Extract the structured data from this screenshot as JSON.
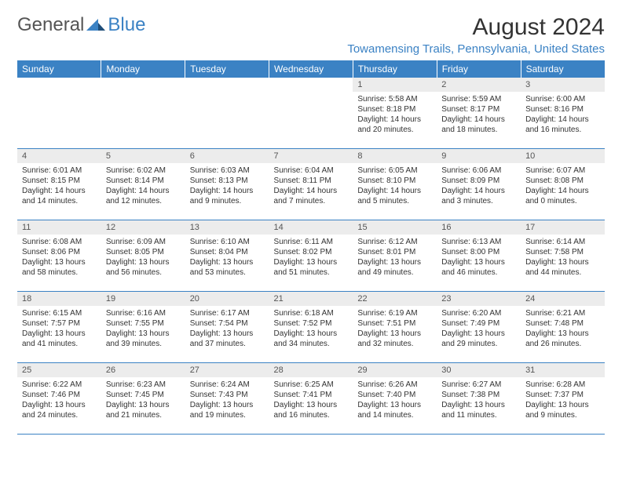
{
  "brand": {
    "part1": "General",
    "part2": "Blue"
  },
  "title": "August 2024",
  "subtitle": "Towamensing Trails, Pennsylvania, United States",
  "colors": {
    "accent": "#3b82c4",
    "header_text": "#ffffff",
    "daynum_bg": "#ececec",
    "text": "#333333",
    "background": "#ffffff"
  },
  "day_headers": [
    "Sunday",
    "Monday",
    "Tuesday",
    "Wednesday",
    "Thursday",
    "Friday",
    "Saturday"
  ],
  "weeks": [
    [
      {
        "day": "",
        "lines": []
      },
      {
        "day": "",
        "lines": []
      },
      {
        "day": "",
        "lines": []
      },
      {
        "day": "",
        "lines": []
      },
      {
        "day": "1",
        "lines": [
          "Sunrise: 5:58 AM",
          "Sunset: 8:18 PM",
          "Daylight: 14 hours and 20 minutes."
        ]
      },
      {
        "day": "2",
        "lines": [
          "Sunrise: 5:59 AM",
          "Sunset: 8:17 PM",
          "Daylight: 14 hours and 18 minutes."
        ]
      },
      {
        "day": "3",
        "lines": [
          "Sunrise: 6:00 AM",
          "Sunset: 8:16 PM",
          "Daylight: 14 hours and 16 minutes."
        ]
      }
    ],
    [
      {
        "day": "4",
        "lines": [
          "Sunrise: 6:01 AM",
          "Sunset: 8:15 PM",
          "Daylight: 14 hours and 14 minutes."
        ]
      },
      {
        "day": "5",
        "lines": [
          "Sunrise: 6:02 AM",
          "Sunset: 8:14 PM",
          "Daylight: 14 hours and 12 minutes."
        ]
      },
      {
        "day": "6",
        "lines": [
          "Sunrise: 6:03 AM",
          "Sunset: 8:13 PM",
          "Daylight: 14 hours and 9 minutes."
        ]
      },
      {
        "day": "7",
        "lines": [
          "Sunrise: 6:04 AM",
          "Sunset: 8:11 PM",
          "Daylight: 14 hours and 7 minutes."
        ]
      },
      {
        "day": "8",
        "lines": [
          "Sunrise: 6:05 AM",
          "Sunset: 8:10 PM",
          "Daylight: 14 hours and 5 minutes."
        ]
      },
      {
        "day": "9",
        "lines": [
          "Sunrise: 6:06 AM",
          "Sunset: 8:09 PM",
          "Daylight: 14 hours and 3 minutes."
        ]
      },
      {
        "day": "10",
        "lines": [
          "Sunrise: 6:07 AM",
          "Sunset: 8:08 PM",
          "Daylight: 14 hours and 0 minutes."
        ]
      }
    ],
    [
      {
        "day": "11",
        "lines": [
          "Sunrise: 6:08 AM",
          "Sunset: 8:06 PM",
          "Daylight: 13 hours and 58 minutes."
        ]
      },
      {
        "day": "12",
        "lines": [
          "Sunrise: 6:09 AM",
          "Sunset: 8:05 PM",
          "Daylight: 13 hours and 56 minutes."
        ]
      },
      {
        "day": "13",
        "lines": [
          "Sunrise: 6:10 AM",
          "Sunset: 8:04 PM",
          "Daylight: 13 hours and 53 minutes."
        ]
      },
      {
        "day": "14",
        "lines": [
          "Sunrise: 6:11 AM",
          "Sunset: 8:02 PM",
          "Daylight: 13 hours and 51 minutes."
        ]
      },
      {
        "day": "15",
        "lines": [
          "Sunrise: 6:12 AM",
          "Sunset: 8:01 PM",
          "Daylight: 13 hours and 49 minutes."
        ]
      },
      {
        "day": "16",
        "lines": [
          "Sunrise: 6:13 AM",
          "Sunset: 8:00 PM",
          "Daylight: 13 hours and 46 minutes."
        ]
      },
      {
        "day": "17",
        "lines": [
          "Sunrise: 6:14 AM",
          "Sunset: 7:58 PM",
          "Daylight: 13 hours and 44 minutes."
        ]
      }
    ],
    [
      {
        "day": "18",
        "lines": [
          "Sunrise: 6:15 AM",
          "Sunset: 7:57 PM",
          "Daylight: 13 hours and 41 minutes."
        ]
      },
      {
        "day": "19",
        "lines": [
          "Sunrise: 6:16 AM",
          "Sunset: 7:55 PM",
          "Daylight: 13 hours and 39 minutes."
        ]
      },
      {
        "day": "20",
        "lines": [
          "Sunrise: 6:17 AM",
          "Sunset: 7:54 PM",
          "Daylight: 13 hours and 37 minutes."
        ]
      },
      {
        "day": "21",
        "lines": [
          "Sunrise: 6:18 AM",
          "Sunset: 7:52 PM",
          "Daylight: 13 hours and 34 minutes."
        ]
      },
      {
        "day": "22",
        "lines": [
          "Sunrise: 6:19 AM",
          "Sunset: 7:51 PM",
          "Daylight: 13 hours and 32 minutes."
        ]
      },
      {
        "day": "23",
        "lines": [
          "Sunrise: 6:20 AM",
          "Sunset: 7:49 PM",
          "Daylight: 13 hours and 29 minutes."
        ]
      },
      {
        "day": "24",
        "lines": [
          "Sunrise: 6:21 AM",
          "Sunset: 7:48 PM",
          "Daylight: 13 hours and 26 minutes."
        ]
      }
    ],
    [
      {
        "day": "25",
        "lines": [
          "Sunrise: 6:22 AM",
          "Sunset: 7:46 PM",
          "Daylight: 13 hours and 24 minutes."
        ]
      },
      {
        "day": "26",
        "lines": [
          "Sunrise: 6:23 AM",
          "Sunset: 7:45 PM",
          "Daylight: 13 hours and 21 minutes."
        ]
      },
      {
        "day": "27",
        "lines": [
          "Sunrise: 6:24 AM",
          "Sunset: 7:43 PM",
          "Daylight: 13 hours and 19 minutes."
        ]
      },
      {
        "day": "28",
        "lines": [
          "Sunrise: 6:25 AM",
          "Sunset: 7:41 PM",
          "Daylight: 13 hours and 16 minutes."
        ]
      },
      {
        "day": "29",
        "lines": [
          "Sunrise: 6:26 AM",
          "Sunset: 7:40 PM",
          "Daylight: 13 hours and 14 minutes."
        ]
      },
      {
        "day": "30",
        "lines": [
          "Sunrise: 6:27 AM",
          "Sunset: 7:38 PM",
          "Daylight: 13 hours and 11 minutes."
        ]
      },
      {
        "day": "31",
        "lines": [
          "Sunrise: 6:28 AM",
          "Sunset: 7:37 PM",
          "Daylight: 13 hours and 9 minutes."
        ]
      }
    ]
  ]
}
